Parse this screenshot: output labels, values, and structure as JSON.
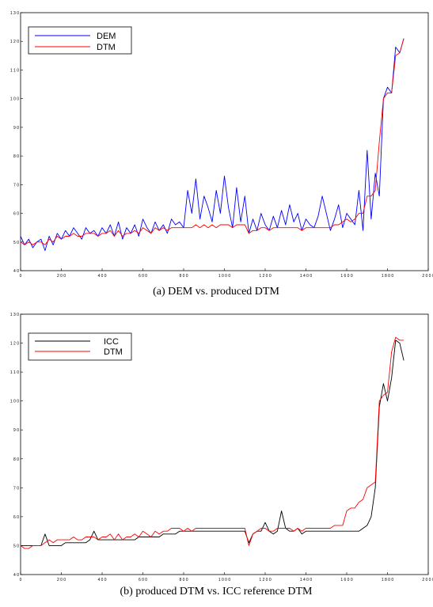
{
  "chart_data": [
    {
      "type": "line",
      "caption": "(a) DEM vs. produced DTM",
      "xlim": [
        0,
        2000
      ],
      "ylim": [
        40,
        130
      ],
      "x_ticks": [
        0,
        200,
        400,
        600,
        800,
        1000,
        1200,
        1400,
        1600,
        1800,
        2000
      ],
      "y_ticks": [
        40,
        50,
        60,
        70,
        80,
        90,
        100,
        110,
        120,
        130
      ],
      "x_tick_labels": [
        "0",
        "2 0 0",
        "4 0 0",
        "6 0 0",
        "8 0 0",
        "1 0 0 0",
        "1 2 0 0",
        "1 4 0 0",
        "1 6 0 0",
        "1 8 0 0",
        "2 0 0 0"
      ],
      "y_tick_labels": [
        "4 0",
        "5 0",
        "6 0",
        "7 0",
        "8 0",
        "9 0",
        "1 0 0",
        "1 1 0",
        "1 2 0",
        "1 3 0"
      ],
      "legend_position": "top-left",
      "grid": false,
      "series": [
        {
          "name": "DEM",
          "color": "#0000ff",
          "x": [
            0,
            20,
            40,
            60,
            80,
            100,
            120,
            140,
            160,
            180,
            200,
            220,
            240,
            260,
            280,
            300,
            320,
            340,
            360,
            380,
            400,
            420,
            440,
            460,
            480,
            500,
            520,
            540,
            560,
            580,
            600,
            620,
            640,
            660,
            680,
            700,
            720,
            740,
            760,
            780,
            800,
            820,
            840,
            860,
            880,
            900,
            920,
            940,
            960,
            980,
            1000,
            1020,
            1040,
            1060,
            1080,
            1100,
            1120,
            1140,
            1160,
            1180,
            1200,
            1220,
            1240,
            1260,
            1280,
            1300,
            1320,
            1340,
            1360,
            1380,
            1400,
            1420,
            1440,
            1460,
            1480,
            1500,
            1520,
            1540,
            1560,
            1580,
            1600,
            1620,
            1640,
            1660,
            1680,
            1700,
            1720,
            1740,
            1760,
            1780,
            1800,
            1820,
            1840,
            1860,
            1880
          ],
          "y": [
            52,
            49,
            51,
            48,
            50,
            51,
            47,
            52,
            49,
            53,
            51,
            54,
            52,
            55,
            53,
            51,
            55,
            53,
            54,
            52,
            55,
            53,
            56,
            52,
            57,
            51,
            55,
            53,
            56,
            52,
            58,
            55,
            53,
            57,
            54,
            56,
            53,
            58,
            56,
            57,
            55,
            68,
            60,
            72,
            58,
            66,
            62,
            57,
            68,
            60,
            73,
            62,
            55,
            69,
            57,
            66,
            53,
            58,
            54,
            60,
            56,
            54,
            59,
            55,
            61,
            56,
            63,
            57,
            60,
            54,
            58,
            56,
            55,
            59,
            66,
            60,
            54,
            58,
            63,
            55,
            60,
            58,
            56,
            68,
            54,
            82,
            58,
            74,
            66,
            100,
            104,
            102,
            118,
            116,
            121
          ]
        },
        {
          "name": "DTM",
          "color": "#ff0000",
          "x": [
            0,
            20,
            40,
            60,
            80,
            100,
            120,
            140,
            160,
            180,
            200,
            220,
            240,
            260,
            280,
            300,
            320,
            340,
            360,
            380,
            400,
            420,
            440,
            460,
            480,
            500,
            520,
            540,
            560,
            580,
            600,
            620,
            640,
            660,
            680,
            700,
            720,
            740,
            760,
            780,
            800,
            820,
            840,
            860,
            880,
            900,
            920,
            940,
            960,
            980,
            1000,
            1020,
            1040,
            1060,
            1080,
            1100,
            1120,
            1140,
            1160,
            1180,
            1200,
            1220,
            1240,
            1260,
            1280,
            1300,
            1320,
            1340,
            1360,
            1380,
            1400,
            1420,
            1440,
            1460,
            1480,
            1500,
            1520,
            1540,
            1560,
            1580,
            1600,
            1620,
            1640,
            1660,
            1680,
            1700,
            1720,
            1740,
            1760,
            1780,
            1800,
            1820,
            1840,
            1860,
            1880
          ],
          "y": [
            50,
            49,
            50,
            49,
            50,
            50,
            49,
            51,
            50,
            52,
            51,
            52,
            52,
            53,
            52,
            52,
            53,
            53,
            53,
            52,
            53,
            53,
            54,
            52,
            54,
            52,
            53,
            53,
            54,
            53,
            55,
            54,
            53,
            55,
            54,
            55,
            54,
            55,
            55,
            55,
            55,
            55,
            55,
            56,
            55,
            56,
            55,
            56,
            55,
            56,
            56,
            56,
            55,
            56,
            56,
            56,
            53,
            54,
            54,
            55,
            55,
            54,
            55,
            55,
            55,
            55,
            55,
            55,
            55,
            54,
            55,
            55,
            55,
            55,
            55,
            55,
            55,
            56,
            56,
            57,
            58,
            57,
            58,
            60,
            60,
            66,
            66,
            68,
            85,
            100,
            102,
            102,
            115,
            116,
            121
          ]
        }
      ]
    },
    {
      "type": "line",
      "caption": "(b) produced DTM vs. ICC reference DTM",
      "xlim": [
        0,
        2000
      ],
      "ylim": [
        40,
        130
      ],
      "x_ticks": [
        0,
        200,
        400,
        600,
        800,
        1000,
        1200,
        1400,
        1600,
        1800,
        2000
      ],
      "y_ticks": [
        40,
        50,
        60,
        70,
        80,
        90,
        100,
        110,
        120,
        130
      ],
      "x_tick_labels": [
        "0",
        "2 0 0",
        "4 0 0",
        "6 0 0",
        "8 0 0",
        "1 0 0 0",
        "1 2 0 0",
        "1 4 0 0",
        "1 6 0 0",
        "1 8 0 0",
        "2 0 0 0"
      ],
      "y_tick_labels": [
        "4 0",
        "5 0",
        "6 0",
        "7 0",
        "8 0",
        "9 0",
        "1 0 0",
        "1 1 0",
        "1 2 0",
        "1 3 0"
      ],
      "legend_position": "top-left",
      "grid": false,
      "series": [
        {
          "name": "ICC",
          "color": "#000000",
          "x": [
            0,
            20,
            40,
            60,
            80,
            100,
            120,
            140,
            160,
            180,
            200,
            220,
            240,
            260,
            280,
            300,
            320,
            340,
            360,
            380,
            400,
            420,
            440,
            460,
            480,
            500,
            520,
            540,
            560,
            580,
            600,
            620,
            640,
            660,
            680,
            700,
            720,
            740,
            760,
            780,
            800,
            820,
            840,
            860,
            880,
            900,
            920,
            940,
            960,
            980,
            1000,
            1020,
            1040,
            1060,
            1080,
            1100,
            1120,
            1140,
            1160,
            1180,
            1200,
            1220,
            1240,
            1260,
            1280,
            1300,
            1320,
            1340,
            1360,
            1380,
            1400,
            1420,
            1440,
            1460,
            1480,
            1500,
            1520,
            1540,
            1560,
            1580,
            1600,
            1620,
            1640,
            1660,
            1680,
            1700,
            1720,
            1740,
            1760,
            1780,
            1800,
            1820,
            1840,
            1860,
            1880
          ],
          "y": [
            50,
            50,
            50,
            50,
            50,
            50,
            54,
            50,
            50,
            50,
            50,
            51,
            51,
            51,
            51,
            51,
            51,
            52,
            55,
            52,
            52,
            52,
            52,
            52,
            52,
            52,
            52,
            52,
            52,
            53,
            53,
            53,
            53,
            53,
            53,
            54,
            54,
            54,
            54,
            55,
            55,
            55,
            55,
            55,
            55,
            55,
            55,
            55,
            55,
            55,
            55,
            55,
            55,
            55,
            55,
            55,
            51,
            54,
            55,
            55,
            58,
            55,
            54,
            55,
            62,
            56,
            55,
            55,
            56,
            54,
            55,
            55,
            55,
            55,
            55,
            55,
            55,
            55,
            55,
            55,
            55,
            55,
            55,
            55,
            56,
            57,
            60,
            70,
            98,
            106,
            100,
            108,
            121,
            120,
            114
          ]
        },
        {
          "name": "DTM",
          "color": "#ff0000",
          "x": [
            0,
            20,
            40,
            60,
            80,
            100,
            120,
            140,
            160,
            180,
            200,
            220,
            240,
            260,
            280,
            300,
            320,
            340,
            360,
            380,
            400,
            420,
            440,
            460,
            480,
            500,
            520,
            540,
            560,
            580,
            600,
            620,
            640,
            660,
            680,
            700,
            720,
            740,
            760,
            780,
            800,
            820,
            840,
            860,
            880,
            900,
            920,
            940,
            960,
            980,
            1000,
            1020,
            1040,
            1060,
            1080,
            1100,
            1120,
            1140,
            1160,
            1180,
            1200,
            1220,
            1240,
            1260,
            1280,
            1300,
            1320,
            1340,
            1360,
            1380,
            1400,
            1420,
            1440,
            1460,
            1480,
            1500,
            1520,
            1540,
            1560,
            1580,
            1600,
            1620,
            1640,
            1660,
            1680,
            1700,
            1720,
            1740,
            1760,
            1780,
            1800,
            1820,
            1840,
            1860,
            1880
          ],
          "y": [
            50,
            49,
            49,
            50,
            50,
            50,
            51,
            52,
            51,
            52,
            52,
            52,
            52,
            53,
            52,
            52,
            53,
            53,
            53,
            52,
            53,
            53,
            54,
            52,
            54,
            52,
            53,
            53,
            54,
            53,
            55,
            54,
            53,
            55,
            54,
            55,
            55,
            56,
            56,
            56,
            55,
            56,
            55,
            56,
            56,
            56,
            56,
            56,
            56,
            56,
            56,
            56,
            56,
            56,
            56,
            56,
            50,
            54,
            55,
            56,
            56,
            55,
            55,
            56,
            56,
            56,
            56,
            55,
            56,
            55,
            56,
            56,
            56,
            56,
            56,
            56,
            56,
            57,
            57,
            57,
            62,
            63,
            63,
            65,
            66,
            70,
            71,
            72,
            100,
            102,
            103,
            117,
            122,
            121,
            121
          ]
        }
      ]
    }
  ]
}
